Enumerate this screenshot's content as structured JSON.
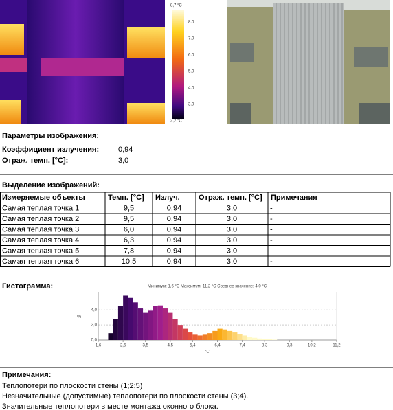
{
  "thermal": {
    "scale_labels": [
      "8,7 °C",
      "8.0",
      "7.0",
      "6.0",
      "5.0",
      "4.0",
      "3.0",
      "2,2 °C"
    ]
  },
  "image_params": {
    "title": "Параметры изображения:",
    "rows": [
      [
        "Коэффициент излучения:",
        "0,94"
      ],
      [
        "Отраж. темп. [°C]:",
        "3,0"
      ]
    ]
  },
  "table": {
    "title": "Выделение изображений:",
    "header": [
      "Измеряемые объекты",
      "Темп. [°C]",
      "Излуч.",
      "Отраж. темп. [°C]",
      "Примечания"
    ],
    "rows": [
      [
        "Самая теплая точка 1",
        "9,5",
        "0,94",
        "3,0",
        "-"
      ],
      [
        "Самая теплая точка 2",
        "9,5",
        "0,94",
        "3,0",
        "-"
      ],
      [
        "Самая теплая точка 3",
        "6,0",
        "0,94",
        "3,0",
        "-"
      ],
      [
        "Самая теплая точка 4",
        "6,3",
        "0,94",
        "3,0",
        "-"
      ],
      [
        "Самая теплая точка 5",
        "7,8",
        "0,94",
        "3,0",
        "-"
      ],
      [
        "Самая теплая точка 6",
        "10,5",
        "0,94",
        "3,0",
        "-"
      ]
    ]
  },
  "histogram": {
    "title": "Гистограмма:",
    "chart_data": {
      "type": "histogram",
      "subtitle": "Минимум: 1,6 °C Максимум: 11,2 °C Среднее значение: 4,0 °C",
      "x_label": "°C",
      "y_label": "%",
      "bins": [
        2.0,
        2.2,
        2.4,
        2.6,
        2.8,
        3.0,
        3.2,
        3.4,
        3.6,
        3.8,
        4.0,
        4.2,
        4.4,
        4.6,
        4.8,
        5.0,
        5.2,
        5.4,
        5.6,
        5.8,
        6.0,
        6.2,
        6.4,
        6.6,
        6.8,
        7.0,
        7.2,
        7.4,
        7.6,
        7.8,
        8.0,
        8.2,
        8.4,
        8.6,
        8.8
      ],
      "values": [
        0.9,
        2.8,
        4.5,
        5.9,
        5.6,
        5.0,
        4.2,
        3.6,
        3.9,
        4.5,
        4.6,
        4.2,
        3.6,
        2.8,
        2.0,
        1.5,
        1.0,
        0.7,
        0.6,
        0.7,
        0.9,
        1.2,
        1.5,
        1.4,
        1.2,
        1.0,
        0.8,
        0.6,
        0.4,
        0.3,
        0.2,
        0.1,
        0.1,
        0.05
      ],
      "xlim": [
        1.6,
        11.2
      ],
      "ylim": [
        0,
        6.4
      ],
      "xticks": [
        {
          "value": 1.6,
          "label": "1,6"
        },
        {
          "value": 2.6,
          "label": "2,6"
        },
        {
          "value": 3.5,
          "label": "3,5"
        },
        {
          "value": 4.5,
          "label": "4,5"
        },
        {
          "value": 5.4,
          "label": "5,4"
        },
        {
          "value": 6.4,
          "label": "6,4"
        },
        {
          "value": 7.4,
          "label": "7,4"
        },
        {
          "value": 8.3,
          "label": "8,3"
        },
        {
          "value": 9.3,
          "label": "9,3"
        },
        {
          "value": 10.2,
          "label": "10,2"
        },
        {
          "value": 11.2,
          "label": "11,2"
        }
      ],
      "yticks": [
        {
          "value": 0,
          "label": "0,0"
        },
        {
          "value": 2,
          "label": "2,0"
        },
        {
          "value": 4,
          "label": "4,0"
        }
      ],
      "grid": true
    }
  },
  "notes": {
    "title": "Примечания:",
    "lines": [
      "Теплопотери по плоскости стены (1;2;5)",
      "Незначительные (допустимые) теплопотери по плоскости стены (3;4).",
      "Значительные теплопотери в месте монтажа оконного блока."
    ]
  }
}
